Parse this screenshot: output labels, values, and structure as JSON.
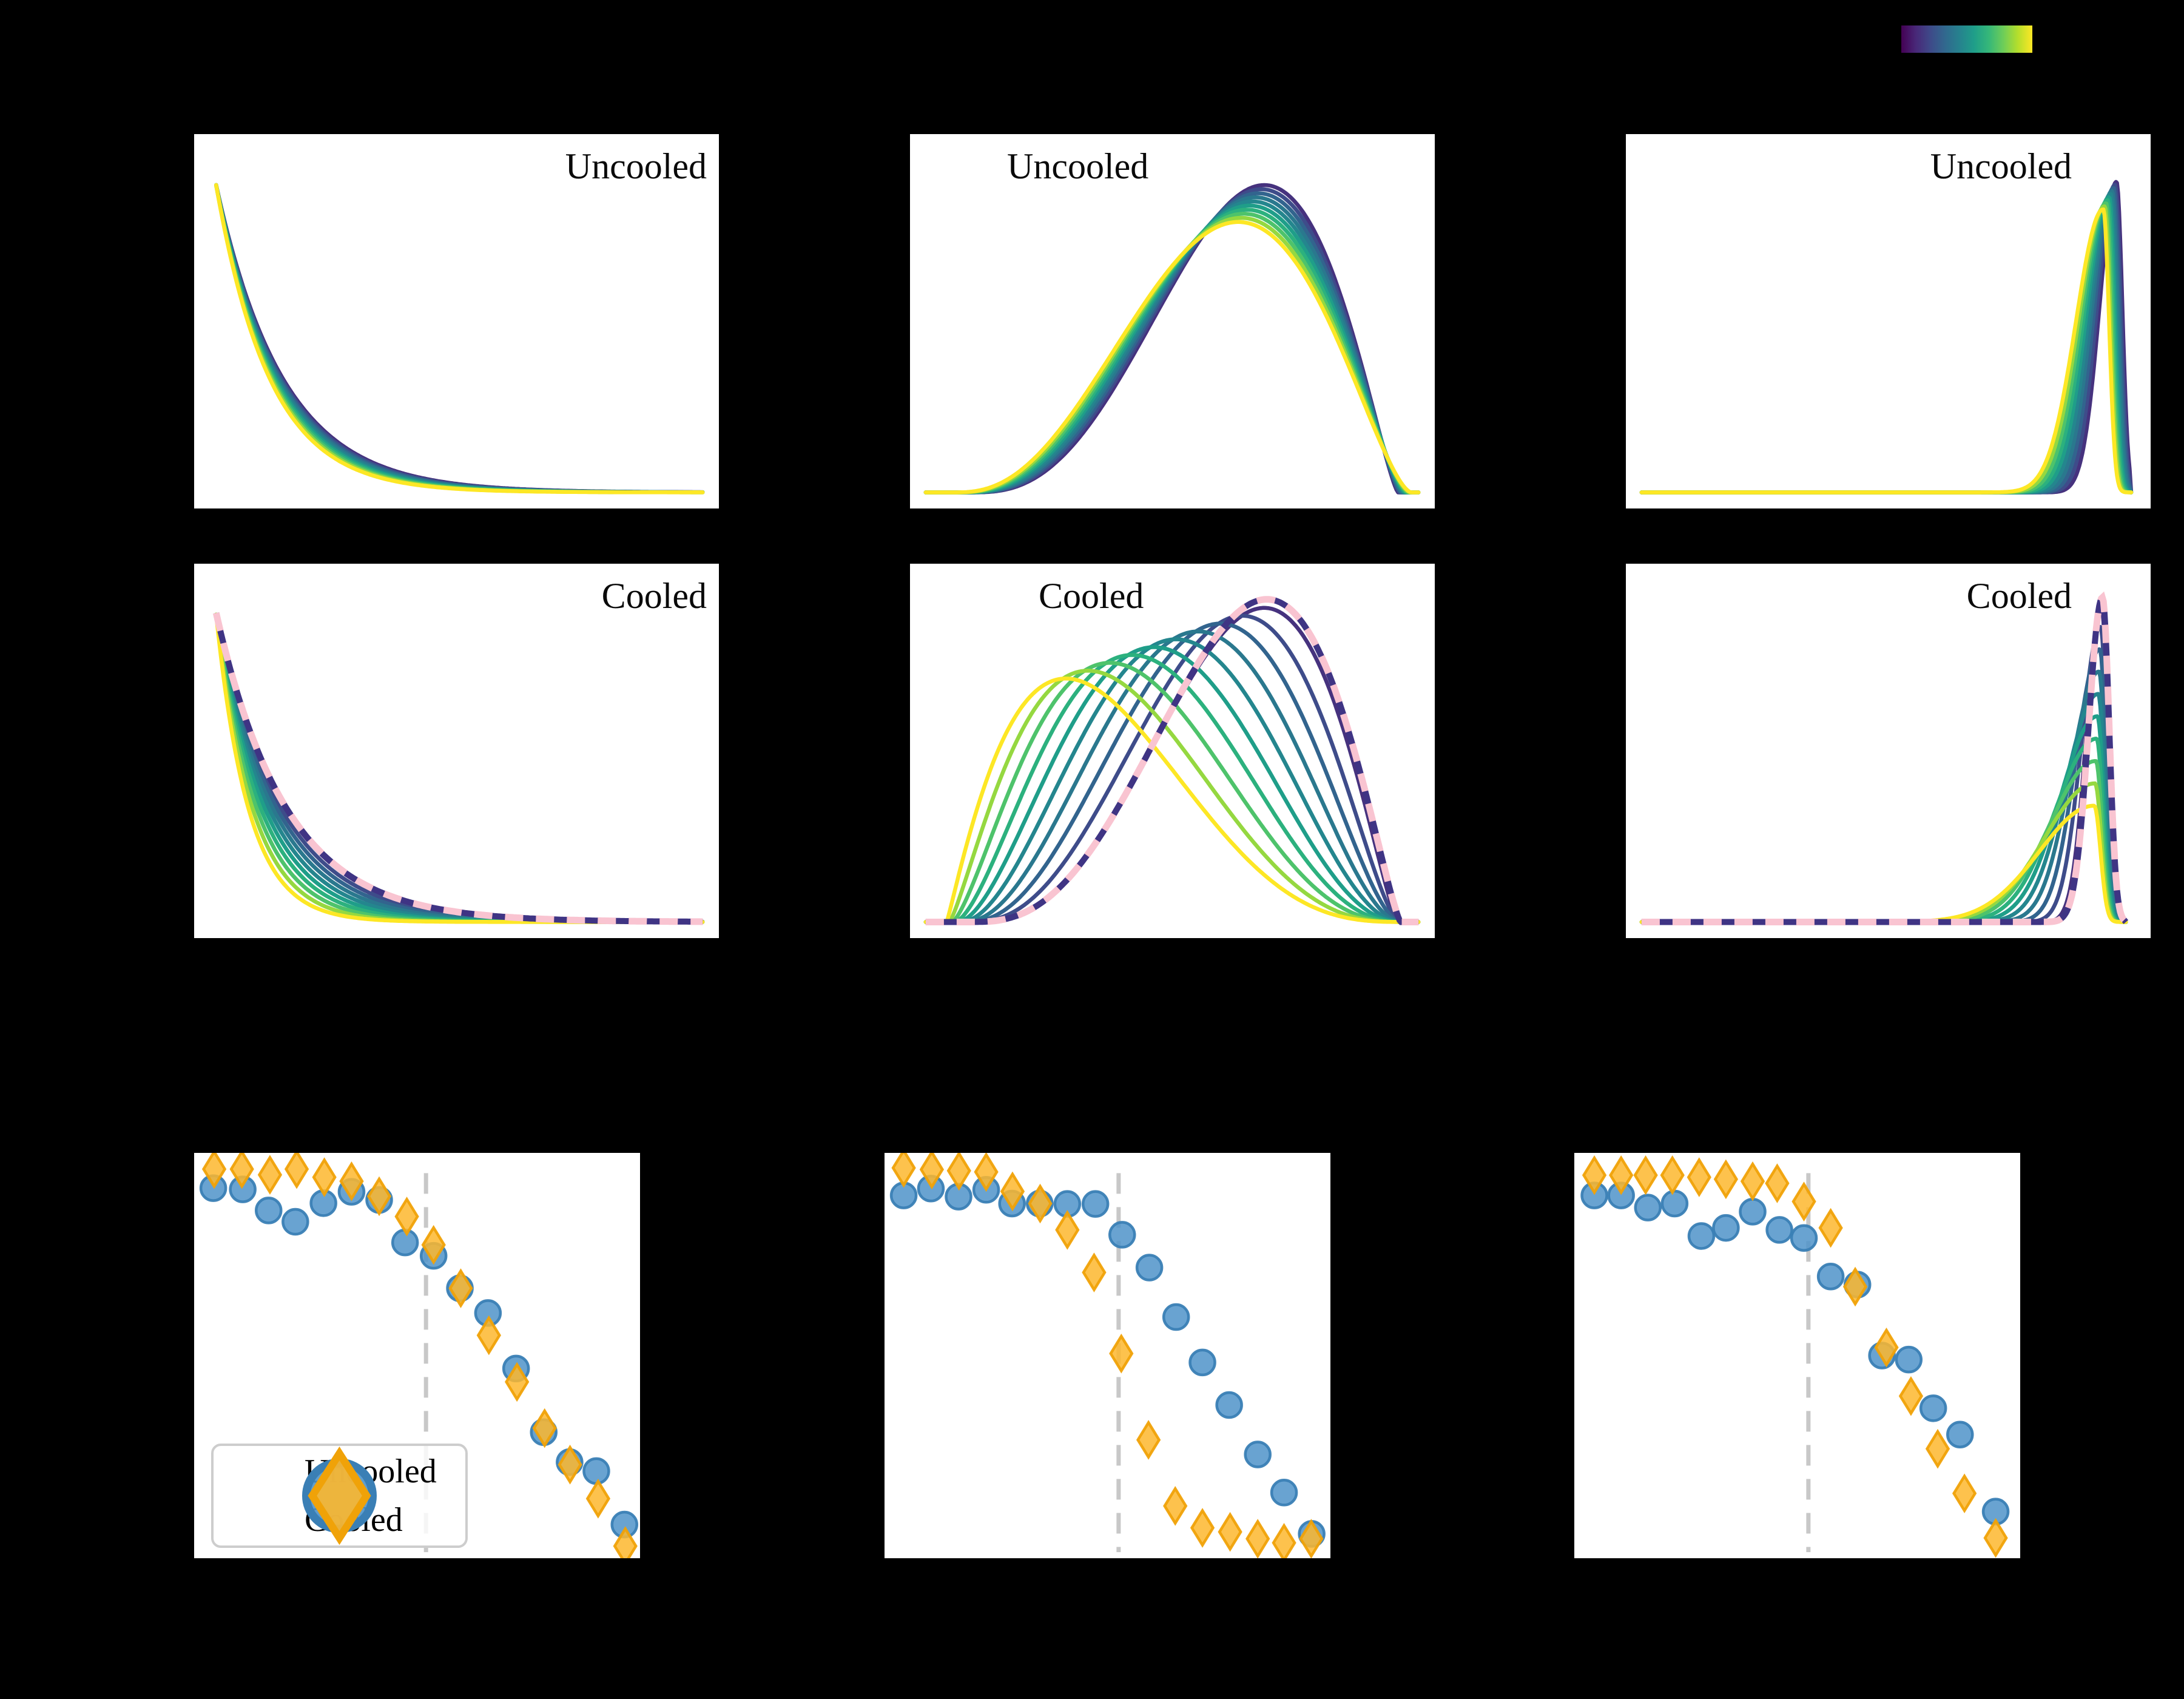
{
  "figure": {
    "background": "#000000",
    "panel_background": "#ffffff"
  },
  "labels": {
    "uncooled": "Uncooled",
    "cooled": "Cooled"
  },
  "palette": {
    "viridis_lines": [
      "#46327e",
      "#3e4c8a",
      "#32648e",
      "#2a788e",
      "#24868e",
      "#1f9e89",
      "#2cb17e",
      "#4ec36b",
      "#95d840",
      "#fde725"
    ],
    "dashed_navy": "#3f3484",
    "dashed_pink": "#f9c4d1",
    "vline": "#c8c8c8",
    "uncooled_marker_fill": "#4f93c9",
    "uncooled_marker_edge": "#3a7fb5",
    "cooled_marker_fill": "#fdb72e",
    "cooled_marker_edge": "#f0a208",
    "colorbar_stops": [
      "#440154",
      "#482878",
      "#3e4a89",
      "#31688e",
      "#26828e",
      "#1f9e89",
      "#35b779",
      "#6dcd59",
      "#b4de2c",
      "#fde725"
    ]
  },
  "legend": {
    "items": [
      {
        "label": "Uncooled",
        "marker": "circle"
      },
      {
        "label": "Cooled",
        "marker": "diamond"
      }
    ]
  },
  "chart_data": [
    {
      "id": "pdf-uncooled-1",
      "type": "line",
      "label": "Uncooled",
      "label_pos": "top-right",
      "family": "exp_decay",
      "colormap": "viridis",
      "n_curves": 10,
      "curves": {
        "x0": 0.042,
        "tau0": 0.128,
        "dtau": -0.0028,
        "h0": 0.9,
        "dh": 0.0
      },
      "dashed_reference": null,
      "x_range_frac": [
        0,
        1
      ],
      "y_range_frac": [
        0,
        1
      ],
      "grid": false
    },
    {
      "id": "pdf-uncooled-2",
      "type": "line",
      "label": "Uncooled",
      "label_pos": "top-left",
      "family": "skew_bump",
      "colormap": "viridis",
      "n_curves": 10,
      "curves": {
        "x0_0": 0.115,
        "dx0": -0.0033,
        "x1_0": 0.93,
        "dx1": 0.0028,
        "m0": 0.675,
        "dm": -0.0055,
        "h0": 0.9,
        "dh": -0.012,
        "k": 4.2
      },
      "dashed_reference": null,
      "grid": false
    },
    {
      "id": "pdf-uncooled-3",
      "type": "line",
      "label": "Uncooled",
      "label_pos": "top-right-inset",
      "family": "sharp_peak",
      "colormap": "viridis",
      "n_curves": 10,
      "curves": {
        "mu0": 0.935,
        "dmu": -0.0028,
        "sl0": 0.032,
        "dsl": 0.0022,
        "sr": 0.011,
        "h0": 0.91,
        "dh": -0.009,
        "cut": 0.962
      },
      "dashed_reference": null,
      "grid": false
    },
    {
      "id": "pdf-cooled-1",
      "type": "line",
      "label": "Cooled",
      "label_pos": "top-right",
      "family": "exp_decay",
      "colormap": "viridis",
      "n_curves": 10,
      "curves": {
        "x0": 0.042,
        "tau0": 0.132,
        "dtau": -0.0078,
        "h0": 0.9,
        "dh": 0.0
      },
      "dashed_reference": {
        "tau": 0.134,
        "h": 0.905
      },
      "grid": false
    },
    {
      "id": "pdf-cooled-2",
      "type": "line",
      "label": "Cooled",
      "label_pos": "top-left",
      "family": "skew_bump",
      "colormap": "viridis",
      "n_curves": 10,
      "curves": {
        "x0_0": 0.115,
        "dx0": -0.005,
        "x1_0": 0.93,
        "dx1": 0.002,
        "m0": 0.675,
        "dm": -0.042,
        "h0": 0.92,
        "dh": -0.023,
        "k": 4.2
      },
      "dashed_reference": {
        "x0": 0.113,
        "x1": 0.935,
        "m": 0.68,
        "h": 0.945,
        "k": 4.2
      },
      "grid": false
    },
    {
      "id": "pdf-cooled-3",
      "type": "line",
      "label": "Cooled",
      "label_pos": "top-right-inset",
      "family": "sharp_peak",
      "colormap": "viridis",
      "n_curves": 10,
      "curves": {
        "mu0": 0.906,
        "dmu": -0.0015,
        "sl0": 0.028,
        "dsl": 0.0085,
        "sr": 0.012,
        "h0": 0.93,
        "dh": -0.0655,
        "cut": 0.952
      },
      "dashed_reference": {
        "mu": 0.908,
        "sl": 0.026,
        "sr": 0.013,
        "h": 0.95,
        "cut": 0.952
      },
      "grid": false
    },
    {
      "id": "scatter-1",
      "type": "scatter",
      "vline_x": 0.52,
      "legend": true,
      "series": [
        {
          "name": "Uncooled",
          "marker": "circle",
          "fill": "#4f93c9",
          "edge": "#3a7fb5",
          "points": [
            [
              0.043,
              0.087
            ],
            [
              0.109,
              0.09
            ],
            [
              0.167,
              0.142
            ],
            [
              0.227,
              0.17
            ],
            [
              0.29,
              0.124
            ],
            [
              0.353,
              0.096
            ],
            [
              0.415,
              0.116
            ],
            [
              0.473,
              0.221
            ],
            [
              0.537,
              0.254
            ],
            [
              0.596,
              0.334
            ],
            [
              0.659,
              0.395
            ],
            [
              0.722,
              0.532
            ],
            [
              0.784,
              0.689
            ],
            [
              0.842,
              0.763
            ],
            [
              0.902,
              0.785
            ],
            [
              0.965,
              0.917
            ]
          ]
        },
        {
          "name": "Cooled",
          "marker": "diamond",
          "fill": "#fdb72e",
          "edge": "#f0a208",
          "points": [
            [
              0.045,
              0.04
            ],
            [
              0.107,
              0.04
            ],
            [
              0.17,
              0.054
            ],
            [
              0.23,
              0.04
            ],
            [
              0.292,
              0.06
            ],
            [
              0.353,
              0.07
            ],
            [
              0.415,
              0.107
            ],
            [
              0.477,
              0.157
            ],
            [
              0.537,
              0.227
            ],
            [
              0.598,
              0.334
            ],
            [
              0.661,
              0.45
            ],
            [
              0.724,
              0.565
            ],
            [
              0.786,
              0.679
            ],
            [
              0.843,
              0.769
            ],
            [
              0.906,
              0.853
            ],
            [
              0.967,
              0.97
            ]
          ]
        }
      ]
    },
    {
      "id": "scatter-2",
      "type": "scatter",
      "vline_x": 0.525,
      "legend": false,
      "series": [
        {
          "name": "Uncooled",
          "marker": "circle",
          "fill": "#4f93c9",
          "edge": "#3a7fb5",
          "points": [
            [
              0.043,
              0.105
            ],
            [
              0.104,
              0.088
            ],
            [
              0.166,
              0.108
            ],
            [
              0.228,
              0.091
            ],
            [
              0.286,
              0.125
            ],
            [
              0.348,
              0.125
            ],
            [
              0.41,
              0.126
            ],
            [
              0.473,
              0.126
            ],
            [
              0.533,
              0.202
            ],
            [
              0.594,
              0.283
            ],
            [
              0.654,
              0.405
            ],
            [
              0.713,
              0.517
            ],
            [
              0.773,
              0.622
            ],
            [
              0.837,
              0.744
            ],
            [
              0.896,
              0.838
            ],
            [
              0.958,
              0.94
            ]
          ]
        },
        {
          "name": "Cooled",
          "marker": "diamond",
          "fill": "#fdb72e",
          "edge": "#f0a208",
          "points": [
            [
              0.043,
              0.037
            ],
            [
              0.106,
              0.041
            ],
            [
              0.167,
              0.044
            ],
            [
              0.228,
              0.047
            ],
            [
              0.287,
              0.095
            ],
            [
              0.349,
              0.125
            ],
            [
              0.41,
              0.19
            ],
            [
              0.47,
              0.295
            ],
            [
              0.531,
              0.495
            ],
            [
              0.592,
              0.708
            ],
            [
              0.652,
              0.871
            ],
            [
              0.713,
              0.925
            ],
            [
              0.775,
              0.935
            ],
            [
              0.837,
              0.952
            ],
            [
              0.896,
              0.962
            ],
            [
              0.957,
              0.952
            ]
          ]
        }
      ]
    },
    {
      "id": "scatter-3",
      "type": "scatter",
      "vline_x": 0.525,
      "legend": false,
      "series": [
        {
          "name": "Uncooled",
          "marker": "circle",
          "fill": "#4f93c9",
          "edge": "#3a7fb5",
          "points": [
            [
              0.045,
              0.105
            ],
            [
              0.105,
              0.105
            ],
            [
              0.165,
              0.135
            ],
            [
              0.225,
              0.125
            ],
            [
              0.285,
              0.205
            ],
            [
              0.34,
              0.185
            ],
            [
              0.4,
              0.145
            ],
            [
              0.46,
              0.19
            ],
            [
              0.515,
              0.21
            ],
            [
              0.575,
              0.305
            ],
            [
              0.635,
              0.325
            ],
            [
              0.69,
              0.5
            ],
            [
              0.75,
              0.51
            ],
            [
              0.805,
              0.63
            ],
            [
              0.865,
              0.695
            ],
            [
              0.945,
              0.885
            ]
          ]
        },
        {
          "name": "Cooled",
          "marker": "diamond",
          "fill": "#fdb72e",
          "edge": "#f0a208",
          "points": [
            [
              0.045,
              0.055
            ],
            [
              0.105,
              0.055
            ],
            [
              0.16,
              0.055
            ],
            [
              0.22,
              0.055
            ],
            [
              0.28,
              0.06
            ],
            [
              0.34,
              0.065
            ],
            [
              0.4,
              0.07
            ],
            [
              0.455,
              0.075
            ],
            [
              0.515,
              0.12
            ],
            [
              0.575,
              0.185
            ],
            [
              0.63,
              0.33
            ],
            [
              0.7,
              0.48
            ],
            [
              0.755,
              0.6
            ],
            [
              0.815,
              0.73
            ],
            [
              0.875,
              0.84
            ],
            [
              0.945,
              0.95
            ]
          ]
        }
      ]
    }
  ]
}
